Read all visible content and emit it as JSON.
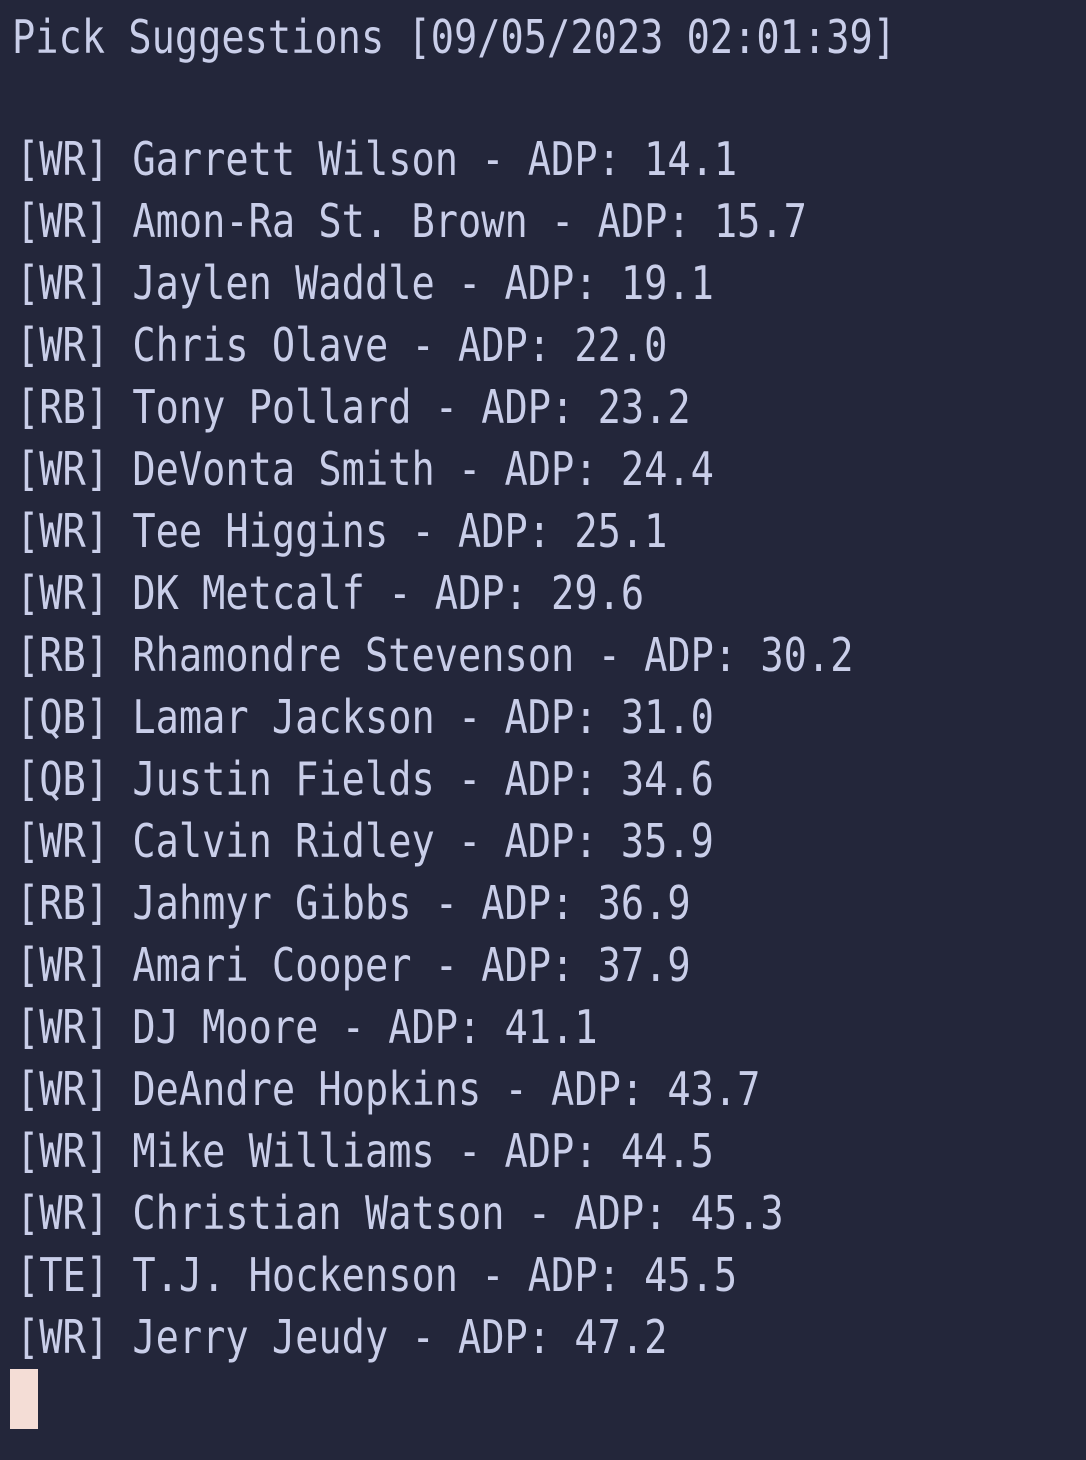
{
  "terminal": {
    "title": "Pick Suggestions [09/05/2023 02:01:39]",
    "suggestions": [
      "[WR] Garrett Wilson - ADP: 14.1",
      "[WR] Amon-Ra St. Brown - ADP: 15.7",
      "[WR] Jaylen Waddle - ADP: 19.1",
      "[WR] Chris Olave - ADP: 22.0",
      "[RB] Tony Pollard - ADP: 23.2",
      "[WR] DeVonta Smith - ADP: 24.4",
      "[WR] Tee Higgins - ADP: 25.1",
      "[WR] DK Metcalf - ADP: 29.6",
      "[RB] Rhamondre Stevenson - ADP: 30.2",
      "[QB] Lamar Jackson - ADP: 31.0",
      "[QB] Justin Fields - ADP: 34.6",
      "[WR] Calvin Ridley - ADP: 35.9",
      "[RB] Jahmyr Gibbs - ADP: 36.9",
      "[WR] Amari Cooper - ADP: 37.9",
      "[WR] DJ Moore - ADP: 41.1",
      "[WR] DeAndre Hopkins - ADP: 43.7",
      "[WR] Mike Williams - ADP: 44.5",
      "[WR] Christian Watson - ADP: 45.3",
      "[TE] T.J. Hockenson - ADP: 45.5",
      "[WR] Jerry Jeudy - ADP: 47.2"
    ]
  },
  "colors": {
    "background": "#23263a",
    "text": "#c9cee9",
    "cursor": "#f4ddd6"
  }
}
